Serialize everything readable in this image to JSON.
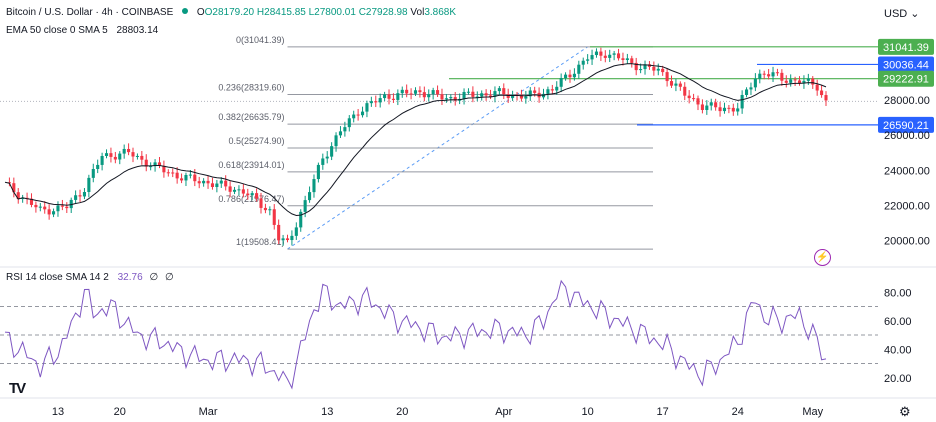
{
  "header": {
    "symbol": "Bitcoin / U.S. Dollar · 4h · COINBASE",
    "ohlc_o": "O28179.20",
    "ohlc_h": "H28415.85",
    "ohlc_l": "L27800.01",
    "ohlc_c": "C27928.98",
    "vol": "Vol",
    "vol_val": "3.868K",
    "ema_label": "EMA 50 close 0 SMA 5",
    "ema_value": "28803.14",
    "rsi_label": "RSI 14 close SMA 14 2",
    "rsi_value": "32.76",
    "rsi_extra1": "∅",
    "rsi_extra2": "∅",
    "currency": "USD",
    "currency_caret": "⌄"
  },
  "icons": {
    "lightning": "lightning-icon",
    "logo": "tradingview-logo",
    "settings": "gear-icon"
  },
  "colors": {
    "up": "#089981",
    "down": "#f23645",
    "ema": "#131722",
    "rsi": "#7e57c2",
    "green_level": "#4caf50",
    "blue_level": "#2962ff",
    "fib": "#5b9cf6",
    "grid_text": "#131722"
  },
  "chart_data": {
    "type": "candlestick",
    "price_axis": {
      "ylim": [
        19000,
        32000
      ],
      "ticks": [
        20000,
        22000,
        24000,
        26000,
        28000
      ],
      "tick_labels": [
        "20000.00",
        "22000.00",
        "24000.00",
        "26000.00",
        "28000.00"
      ]
    },
    "time_axis": {
      "tick_labels": [
        "13",
        "20",
        "Mar",
        "13",
        "20",
        "Apr",
        "10",
        "17",
        "24",
        "May"
      ],
      "tick_bar_index": [
        12,
        26,
        46,
        73,
        90,
        113,
        132,
        149,
        166,
        183
      ]
    },
    "price_path": [
      [
        0,
        23200
      ],
      [
        8,
        21700
      ],
      [
        14,
        21900
      ],
      [
        18,
        23000
      ],
      [
        22,
        24800
      ],
      [
        28,
        25000
      ],
      [
        34,
        24200
      ],
      [
        40,
        23600
      ],
      [
        46,
        23300
      ],
      [
        54,
        22800
      ],
      [
        60,
        21700
      ],
      [
        62,
        20100
      ],
      [
        64,
        19800
      ],
      [
        68,
        22200
      ],
      [
        72,
        24700
      ],
      [
        76,
        26200
      ],
      [
        80,
        27400
      ],
      [
        86,
        28200
      ],
      [
        94,
        28500
      ],
      [
        100,
        28100
      ],
      [
        106,
        28300
      ],
      [
        112,
        28400
      ],
      [
        118,
        28200
      ],
      [
        124,
        28600
      ],
      [
        128,
        29500
      ],
      [
        132,
        30400
      ],
      [
        136,
        30700
      ],
      [
        140,
        30300
      ],
      [
        144,
        29900
      ],
      [
        148,
        29700
      ],
      [
        150,
        29300
      ],
      [
        154,
        28300
      ],
      [
        158,
        27700
      ],
      [
        162,
        27500
      ],
      [
        166,
        27600
      ],
      [
        170,
        29300
      ],
      [
        172,
        29600
      ],
      [
        176,
        29200
      ],
      [
        180,
        29100
      ],
      [
        184,
        28800
      ],
      [
        186,
        27900
      ]
    ],
    "ema_last": 28803.14,
    "levels": [
      {
        "value": 31041.39,
        "label": "31041.39",
        "color": "green"
      },
      {
        "value": 30036.44,
        "label": "30036.44",
        "color": "blue"
      },
      {
        "value": 29222.91,
        "label": "29222.91",
        "color": "green"
      },
      {
        "value": 26590.21,
        "label": "26590.21",
        "color": "blue"
      }
    ],
    "current_price": 27928.98,
    "fibonacci": [
      {
        "ratio": "0",
        "price": "31041.39",
        "value": 31041.39
      },
      {
        "ratio": "0.236",
        "price": "28319.60",
        "value": 28319.6
      },
      {
        "ratio": "0.382",
        "price": "26635.79",
        "value": 26635.79
      },
      {
        "ratio": "0.5",
        "price": "25274.90",
        "value": 25274.9
      },
      {
        "ratio": "0.618",
        "price": "23914.01",
        "value": 23914.01
      },
      {
        "ratio": "0.786",
        "price": "21976.47",
        "value": 21976.47
      },
      {
        "ratio": "1",
        "price": "19508.41",
        "value": 19508.41
      }
    ],
    "rsi": {
      "ylim": [
        10,
        90
      ],
      "ticks": [
        20,
        40,
        60,
        80
      ],
      "tick_labels": [
        "20.00",
        "40.00",
        "60.00",
        "80.00"
      ],
      "bands": [
        30,
        50,
        70
      ],
      "path": [
        [
          0,
          48
        ],
        [
          4,
          38
        ],
        [
          8,
          28
        ],
        [
          12,
          38
        ],
        [
          16,
          62
        ],
        [
          18,
          82
        ],
        [
          20,
          65
        ],
        [
          24,
          70
        ],
        [
          30,
          50
        ],
        [
          36,
          45
        ],
        [
          40,
          38
        ],
        [
          46,
          32
        ],
        [
          52,
          33
        ],
        [
          58,
          30
        ],
        [
          62,
          22
        ],
        [
          64,
          15
        ],
        [
          66,
          30
        ],
        [
          70,
          68
        ],
        [
          72,
          80
        ],
        [
          76,
          70
        ],
        [
          82,
          76
        ],
        [
          88,
          62
        ],
        [
          94,
          55
        ],
        [
          100,
          48
        ],
        [
          106,
          52
        ],
        [
          112,
          54
        ],
        [
          118,
          50
        ],
        [
          122,
          60
        ],
        [
          126,
          85
        ],
        [
          130,
          75
        ],
        [
          134,
          68
        ],
        [
          140,
          58
        ],
        [
          144,
          52
        ],
        [
          150,
          42
        ],
        [
          154,
          30
        ],
        [
          158,
          22
        ],
        [
          162,
          32
        ],
        [
          166,
          45
        ],
        [
          170,
          76
        ],
        [
          172,
          62
        ],
        [
          176,
          60
        ],
        [
          180,
          64
        ],
        [
          184,
          45
        ],
        [
          186,
          32
        ]
      ]
    }
  }
}
